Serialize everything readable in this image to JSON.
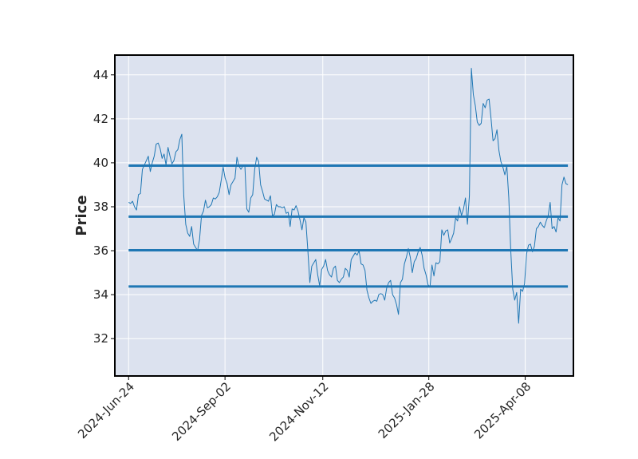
{
  "chart_data": {
    "type": "line",
    "title": "",
    "xlabel": "",
    "ylabel": "Price",
    "x_ticks": [
      "2024-Jun-24",
      "2024-Sep-02",
      "2024-Nov-12",
      "2025-Jan-28",
      "2025-Apr-08"
    ],
    "xlim": [
      "2024-Jun-14",
      "2025-May-13"
    ],
    "y_ticks": [
      "32",
      "34",
      "36",
      "38",
      "40",
      "42",
      "44"
    ],
    "ylim": [
      30.3,
      44.9
    ],
    "grid": true,
    "background": "#dce2ef",
    "series": [
      {
        "color": "#1f77b4",
        "x_start": "2024-Jun-24",
        "x_end": "2025-May-09",
        "values": [
          38.2,
          38.15,
          38.25,
          38.0,
          37.85,
          38.55,
          38.6,
          39.7,
          39.9,
          40.1,
          40.3,
          39.6,
          40.0,
          40.3,
          40.85,
          40.9,
          40.65,
          40.2,
          40.4,
          39.9,
          40.7,
          40.3,
          39.95,
          40.1,
          40.5,
          40.6,
          41.05,
          41.3,
          38.5,
          37.2,
          36.8,
          36.65,
          37.1,
          36.3,
          36.15,
          36.0,
          36.5,
          37.6,
          37.8,
          38.3,
          37.95,
          38.0,
          38.1,
          38.4,
          38.35,
          38.45,
          38.65,
          39.2,
          39.8,
          39.3,
          39.05,
          38.55,
          39.0,
          39.15,
          39.3,
          40.25,
          39.85,
          39.7,
          39.85,
          39.9,
          37.9,
          37.75,
          38.4,
          38.55,
          39.7,
          40.25,
          40.05,
          39.0,
          38.7,
          38.35,
          38.3,
          38.25,
          38.5,
          37.6,
          37.65,
          38.1,
          38.0,
          38.0,
          37.95,
          38.0,
          37.7,
          37.75,
          37.1,
          37.9,
          37.85,
          38.05,
          37.8,
          37.4,
          36.95,
          37.5,
          37.3,
          36.0,
          34.55,
          35.3,
          35.45,
          35.6,
          34.9,
          34.4,
          35.15,
          35.3,
          35.6,
          35.1,
          34.9,
          34.8,
          35.2,
          35.3,
          34.65,
          34.55,
          34.7,
          34.8,
          35.2,
          35.1,
          34.8,
          35.6,
          35.75,
          35.9,
          35.8,
          36.0,
          35.4,
          35.35,
          35.1,
          34.2,
          33.85,
          33.6,
          33.7,
          33.75,
          33.7,
          34.0,
          34.05,
          34.0,
          33.75,
          34.3,
          34.55,
          34.65,
          34.0,
          33.85,
          33.55,
          33.1,
          34.55,
          34.7,
          35.4,
          35.7,
          36.1,
          35.7,
          35.0,
          35.5,
          35.65,
          35.95,
          36.15,
          35.8,
          35.2,
          34.9,
          34.45,
          34.35,
          35.35,
          34.85,
          35.45,
          35.4,
          35.5,
          36.95,
          36.7,
          36.9,
          36.95,
          36.35,
          36.55,
          36.8,
          37.5,
          37.35,
          38.0,
          37.6,
          37.9,
          38.4,
          37.2,
          38.5,
          44.3,
          43.1,
          42.6,
          41.85,
          41.7,
          41.8,
          42.7,
          42.5,
          42.85,
          42.9,
          42.0,
          41.0,
          41.1,
          41.5,
          40.55,
          40.05,
          39.8,
          39.45,
          39.85,
          38.4,
          36.0,
          34.25,
          33.75,
          34.1,
          32.7,
          34.25,
          34.15,
          34.5,
          35.85,
          36.25,
          36.3,
          35.95,
          36.2,
          37.0,
          37.1,
          37.3,
          37.15,
          37.05,
          37.35,
          37.6,
          38.2,
          37.0,
          37.1,
          36.85,
          37.5,
          37.35,
          39.0,
          39.35,
          39.05,
          39.0
        ]
      }
    ],
    "horizontal_lines": [
      39.87,
      37.55,
      36.02,
      34.37
    ],
    "horizontal_line_color": "#1f77b4"
  }
}
